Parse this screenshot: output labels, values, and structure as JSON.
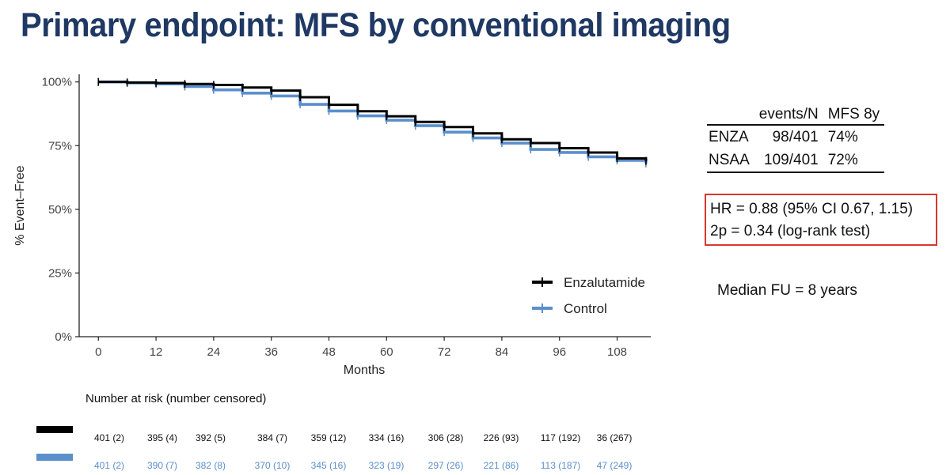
{
  "title": "Primary endpoint: MFS by conventional imaging",
  "colors": {
    "title": "#1f3864",
    "enzalutamide": "#000000",
    "control": "#5b8fcc",
    "box": "#d9372c"
  },
  "chart_data": {
    "type": "line",
    "ylabel": "% Event–Free",
    "xlabel": "Months",
    "xlim": [
      -4,
      115
    ],
    "ylim": [
      0,
      103
    ],
    "xticks": [
      0,
      12,
      24,
      36,
      48,
      60,
      72,
      84,
      96,
      108
    ],
    "yticks": [
      0,
      25,
      50,
      75,
      100
    ],
    "ytick_labels": [
      "0%",
      "25%",
      "50%",
      "75%",
      "100%"
    ],
    "grid": false,
    "legend_position": "bottom-right",
    "series": [
      {
        "name": "Enzalutamide",
        "color": "#000000",
        "x": [
          0,
          6,
          12,
          18,
          24,
          30,
          36,
          42,
          48,
          54,
          60,
          66,
          72,
          78,
          84,
          90,
          96,
          102,
          108,
          114
        ],
        "y": [
          100,
          99.8,
          99.6,
          99.2,
          98.8,
          97.8,
          96.6,
          94,
          91,
          88.5,
          86.5,
          84.3,
          82.3,
          79.8,
          77.5,
          76,
          74,
          72.3,
          70,
          69
        ]
      },
      {
        "name": "Control",
        "color": "#5b8fcc",
        "x": [
          0,
          6,
          12,
          18,
          24,
          30,
          36,
          42,
          48,
          54,
          60,
          66,
          72,
          78,
          84,
          90,
          96,
          102,
          108,
          114
        ],
        "y": [
          100,
          99.6,
          99.2,
          98.2,
          96.9,
          95.6,
          94.5,
          91.2,
          88.6,
          86.7,
          85,
          82.8,
          80.3,
          78,
          76,
          73.5,
          72.3,
          70.6,
          69.2,
          68
        ]
      }
    ]
  },
  "summary_table": {
    "headers": [
      "",
      "events/N",
      "MFS 8y"
    ],
    "rows": [
      [
        "ENZA",
        "98/401",
        "74%"
      ],
      [
        "NSAA",
        "109/401",
        "72%"
      ]
    ]
  },
  "hr_box": {
    "line1": "HR = 0.88 (95% CI 0.67, 1.15)",
    "line2": "2p = 0.34 (log-rank test)"
  },
  "median_fu": "Median FU = 8 years",
  "risk_table": {
    "title": "Number at risk (number censored)",
    "enzalutamide": [
      "401 (2)",
      "395 (4)",
      "392 (5)",
      "384 (7)",
      "359 (12)",
      "334 (16)",
      "306 (28)",
      "226 (93)",
      "117 (192)",
      "36 (267)"
    ],
    "control": [
      "401 (2)",
      "390 (7)",
      "382 (8)",
      "370 (10)",
      "345 (16)",
      "323 (19)",
      "297 (26)",
      "221 (86)",
      "113 (187)",
      "47 (249)"
    ]
  }
}
